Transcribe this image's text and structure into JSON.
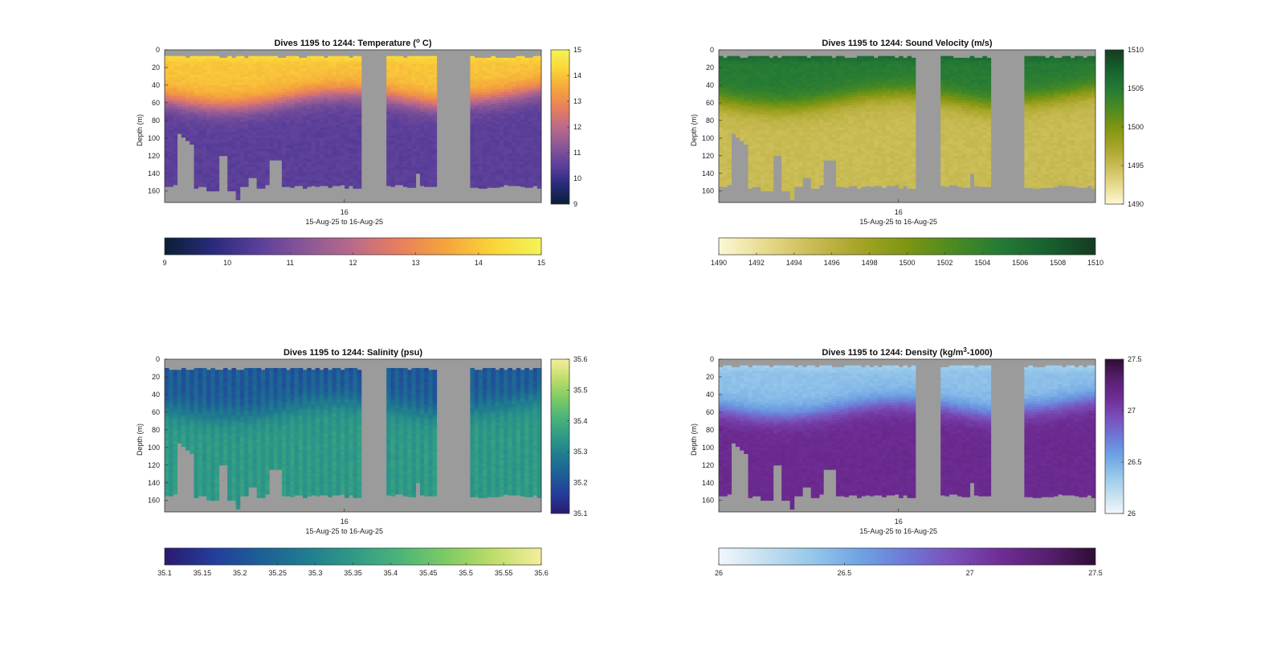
{
  "figure": {
    "background": "#ffffff",
    "no_data_color": "#9b9b9b"
  },
  "chart_data": [
    {
      "type": "heatmap",
      "title": "Dives 1195 to 1244: Temperature (° C)",
      "title_parts": [
        "Dives 1195 to 1244: Temperature (",
        "o",
        " C)"
      ],
      "ylabel": "Depth (m)",
      "xlabel": "15-Aug-25 to 16-Aug-25",
      "x_tick_labels": [
        "16"
      ],
      "y_ticks": [
        0,
        20,
        40,
        60,
        80,
        100,
        120,
        140,
        160
      ],
      "ylim": [
        0,
        173
      ],
      "y_reversed": true,
      "colorbar_ticks": [
        9,
        10,
        11,
        12,
        13,
        14,
        15
      ],
      "colorbar_labels": [
        "9",
        "10",
        "11",
        "12",
        "13",
        "14",
        "15"
      ],
      "clim": [
        9,
        15
      ],
      "colormap": [
        "#0a1f35",
        "#282a7c",
        "#5b3f9a",
        "#8a5797",
        "#bb6a8a",
        "#e87f5c",
        "#f5a63c",
        "#fad538",
        "#f3f457"
      ],
      "surface_value": 14.6,
      "mixed_value": 14.0,
      "deep_value": 10.5,
      "top_gap_m": 7,
      "data_summary": "Warm surface layer about 14-14.8 °C in the upper 50 m; sharp thermocline at 50-80 m; about 10.5 °C below 90 m down to ~155 m; two gaps with no data."
    },
    {
      "type": "heatmap",
      "title": "Dives 1195 to 1244: Sound Velocity (m/s)",
      "title_parts": [
        "Dives 1195 to 1244: Sound Velocity (m/s)"
      ],
      "ylabel": "Depth (m)",
      "xlabel": "15-Aug-25 to 16-Aug-25",
      "x_tick_labels": [
        "16"
      ],
      "y_ticks": [
        0,
        20,
        40,
        60,
        80,
        100,
        120,
        140,
        160
      ],
      "ylim": [
        0,
        173
      ],
      "y_reversed": true,
      "colorbar_ticks": [
        1490,
        1492,
        1494,
        1496,
        1498,
        1500,
        1502,
        1504,
        1506,
        1508,
        1510
      ],
      "colorbar_labels": [
        "1490",
        "1492",
        "1494",
        "1496",
        "1498",
        "1500",
        "1502",
        "1504",
        "1506",
        "1508",
        "1510"
      ],
      "colorbar_side_ticks": [
        1490,
        1495,
        1500,
        1505,
        1510
      ],
      "colorbar_side_labels": [
        "1490",
        "1495",
        "1500",
        "1505",
        "1510"
      ],
      "clim": [
        1490,
        1510
      ],
      "colormap": [
        "#fdf8d5",
        "#e6da8c",
        "#c9bb54",
        "#a5a426",
        "#7d9512",
        "#4a8a22",
        "#247a35",
        "#17602e",
        "#163b22"
      ],
      "surface_value": 1507.5,
      "mixed_value": 1505.0,
      "deep_value": 1495.0,
      "top_gap_m": 7,
      "data_summary": "About 1505-1508 m/s in the upper 50 m, dropping through 60-90 m to about 1494-1496 m/s at depth."
    },
    {
      "type": "heatmap",
      "title": "Dives 1195 to 1244: Salinity (psu)",
      "title_parts": [
        "Dives 1195 to 1244: Salinity (psu)"
      ],
      "ylabel": "Depth (m)",
      "xlabel": "15-Aug-25 to 16-Aug-25",
      "x_tick_labels": [
        "16"
      ],
      "y_ticks": [
        0,
        20,
        40,
        60,
        80,
        100,
        120,
        140,
        160
      ],
      "ylim": [
        0,
        173
      ],
      "y_reversed": true,
      "colorbar_ticks": [
        35.1,
        35.15,
        35.2,
        35.25,
        35.3,
        35.35,
        35.4,
        35.45,
        35.5,
        35.55,
        35.6
      ],
      "colorbar_labels": [
        "35.1",
        "35.15",
        "35.2",
        "35.25",
        "35.3",
        "35.35",
        "35.4",
        "35.45",
        "35.5",
        "35.55",
        "35.6"
      ],
      "colorbar_side_ticks": [
        35.1,
        35.2,
        35.3,
        35.4,
        35.5,
        35.6
      ],
      "colorbar_side_labels": [
        "35.1",
        "35.2",
        "35.3",
        "35.4",
        "35.5",
        "35.6"
      ],
      "clim": [
        35.1,
        35.6
      ],
      "colormap": [
        "#2a1a6e",
        "#243c9a",
        "#1d5e97",
        "#1f7c8f",
        "#2f9a86",
        "#4cb478",
        "#7fcb63",
        "#bfdd6a",
        "#f5ee9c"
      ],
      "surface_value": 35.17,
      "mixed_value": 35.2,
      "deep_value": 35.36,
      "top_gap_m": 10,
      "striped": true,
      "data_summary": "Fresher water about 35.15-35.2 psu in the upper 50 m; about 35.35-35.45 psu below 60 m; vertically striped profiles."
    },
    {
      "type": "heatmap",
      "title": "Dives 1195 to 1244: Density (kg/m³-1000)",
      "title_parts": [
        "Dives 1195 to 1244: Density (kg/m",
        "3",
        "-1000)"
      ],
      "ylabel": "Depth (m)",
      "xlabel": "15-Aug-25 to 16-Aug-25",
      "x_tick_labels": [
        "16"
      ],
      "y_ticks": [
        0,
        20,
        40,
        60,
        80,
        100,
        120,
        140,
        160
      ],
      "ylim": [
        0,
        173
      ],
      "y_reversed": true,
      "colorbar_ticks": [
        26,
        26.5,
        27,
        27.5
      ],
      "colorbar_labels": [
        "26",
        "26.5",
        "27",
        "27.5"
      ],
      "colorbar_side_ticks": [
        26,
        26.5,
        27,
        27.5
      ],
      "colorbar_side_labels": [
        "26",
        "26.5",
        "27",
        "27.5"
      ],
      "clim": [
        26,
        27.5
      ],
      "colormap": [
        "#f1f7fb",
        "#c3dff0",
        "#95c7ea",
        "#6ea3e3",
        "#6e78d6",
        "#7a4eb8",
        "#6e2c94",
        "#561f6e",
        "#2e0e33"
      ],
      "surface_value": 26.25,
      "mixed_value": 26.4,
      "deep_value": 27.15,
      "top_gap_m": 7,
      "data_summary": "Light water about 26.2-26.5 in the upper 50 m; about 27.1-27.2 below 80 m."
    }
  ]
}
